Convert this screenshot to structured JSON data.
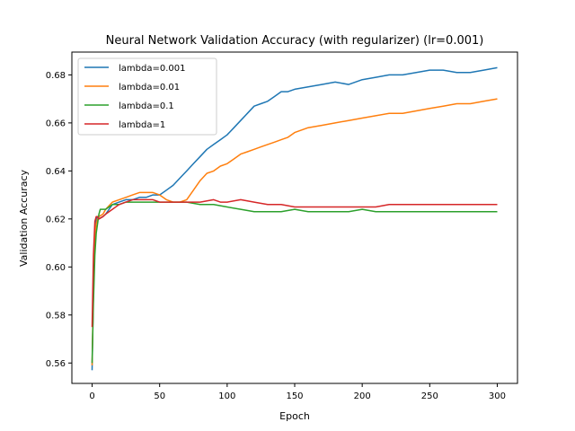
{
  "chart_data": {
    "type": "line",
    "title": "Neural Network Validation Accuracy (with regularizer) (lr=0.001)",
    "xlabel": "Epoch",
    "ylabel": "Validation Accuracy",
    "xlim": [
      -15,
      315
    ],
    "ylim": [
      0.5515,
      0.6895
    ],
    "xticks": [
      0,
      50,
      100,
      150,
      200,
      250,
      300
    ],
    "xtick_labels": [
      "0",
      "50",
      "100",
      "150",
      "200",
      "250",
      "300"
    ],
    "yticks": [
      0.56,
      0.58,
      0.6,
      0.62,
      0.64,
      0.66,
      0.68
    ],
    "ytick_labels": [
      "0.56",
      "0.58",
      "0.60",
      "0.62",
      "0.64",
      "0.66",
      "0.68"
    ],
    "grid": false,
    "legend_position": "top-left",
    "series": [
      {
        "name": "lambda=0.001",
        "color": "#1f77b4",
        "x": [
          0,
          1,
          2,
          3,
          4,
          5,
          8,
          10,
          15,
          20,
          25,
          30,
          35,
          40,
          45,
          50,
          55,
          60,
          65,
          70,
          75,
          80,
          85,
          90,
          95,
          100,
          105,
          110,
          115,
          120,
          125,
          130,
          135,
          140,
          145,
          150,
          160,
          170,
          180,
          190,
          200,
          210,
          220,
          230,
          240,
          250,
          260,
          270,
          280,
          290,
          300
        ],
        "y": [
          0.557,
          0.59,
          0.615,
          0.62,
          0.621,
          0.62,
          0.621,
          0.622,
          0.626,
          0.627,
          0.628,
          0.628,
          0.629,
          0.629,
          0.63,
          0.63,
          0.632,
          0.634,
          0.637,
          0.64,
          0.643,
          0.646,
          0.649,
          0.651,
          0.653,
          0.655,
          0.658,
          0.661,
          0.664,
          0.667,
          0.668,
          0.669,
          0.671,
          0.673,
          0.673,
          0.674,
          0.675,
          0.676,
          0.677,
          0.676,
          0.678,
          0.679,
          0.68,
          0.68,
          0.681,
          0.682,
          0.682,
          0.681,
          0.681,
          0.682,
          0.683
        ]
      },
      {
        "name": "lambda=0.01",
        "color": "#ff7f0e",
        "x": [
          0,
          1,
          2,
          3,
          4,
          5,
          8,
          10,
          15,
          20,
          25,
          30,
          35,
          40,
          45,
          50,
          55,
          60,
          65,
          70,
          75,
          80,
          85,
          90,
          95,
          100,
          105,
          110,
          115,
          120,
          125,
          130,
          135,
          140,
          145,
          150,
          160,
          170,
          180,
          190,
          200,
          210,
          220,
          230,
          240,
          250,
          260,
          270,
          280,
          290,
          300
        ],
        "y": [
          0.559,
          0.592,
          0.612,
          0.618,
          0.62,
          0.621,
          0.622,
          0.624,
          0.627,
          0.628,
          0.629,
          0.63,
          0.631,
          0.631,
          0.631,
          0.63,
          0.628,
          0.627,
          0.627,
          0.628,
          0.632,
          0.636,
          0.639,
          0.64,
          0.642,
          0.643,
          0.645,
          0.647,
          0.648,
          0.649,
          0.65,
          0.651,
          0.652,
          0.653,
          0.654,
          0.656,
          0.658,
          0.659,
          0.66,
          0.661,
          0.662,
          0.663,
          0.664,
          0.664,
          0.665,
          0.666,
          0.667,
          0.668,
          0.668,
          0.669,
          0.67
        ]
      },
      {
        "name": "lambda=0.1",
        "color": "#2ca02c",
        "x": [
          0,
          1,
          2,
          3,
          4,
          5,
          6,
          8,
          10,
          15,
          20,
          25,
          30,
          35,
          40,
          45,
          50,
          60,
          70,
          80,
          90,
          100,
          110,
          120,
          130,
          140,
          150,
          160,
          170,
          180,
          190,
          200,
          210,
          220,
          230,
          240,
          250,
          260,
          270,
          280,
          290,
          300
        ],
        "y": [
          0.56,
          0.585,
          0.605,
          0.614,
          0.618,
          0.622,
          0.624,
          0.624,
          0.624,
          0.626,
          0.626,
          0.627,
          0.627,
          0.627,
          0.627,
          0.627,
          0.627,
          0.627,
          0.627,
          0.626,
          0.626,
          0.625,
          0.624,
          0.623,
          0.623,
          0.623,
          0.624,
          0.623,
          0.623,
          0.623,
          0.623,
          0.624,
          0.623,
          0.623,
          0.623,
          0.623,
          0.623,
          0.623,
          0.623,
          0.623,
          0.623,
          0.623
        ]
      },
      {
        "name": "lambda=1",
        "color": "#d62728",
        "x": [
          0,
          1,
          2,
          3,
          4,
          5,
          8,
          10,
          15,
          20,
          25,
          30,
          35,
          40,
          45,
          50,
          60,
          70,
          80,
          90,
          95,
          100,
          110,
          120,
          130,
          140,
          150,
          160,
          170,
          180,
          190,
          200,
          210,
          220,
          230,
          240,
          250,
          260,
          270,
          280,
          290,
          300
        ],
        "y": [
          0.575,
          0.605,
          0.619,
          0.621,
          0.621,
          0.62,
          0.621,
          0.622,
          0.624,
          0.626,
          0.627,
          0.628,
          0.628,
          0.628,
          0.628,
          0.627,
          0.627,
          0.627,
          0.627,
          0.628,
          0.627,
          0.627,
          0.628,
          0.627,
          0.626,
          0.626,
          0.625,
          0.625,
          0.625,
          0.625,
          0.625,
          0.625,
          0.625,
          0.626,
          0.626,
          0.626,
          0.626,
          0.626,
          0.626,
          0.626,
          0.626,
          0.626
        ]
      }
    ]
  }
}
